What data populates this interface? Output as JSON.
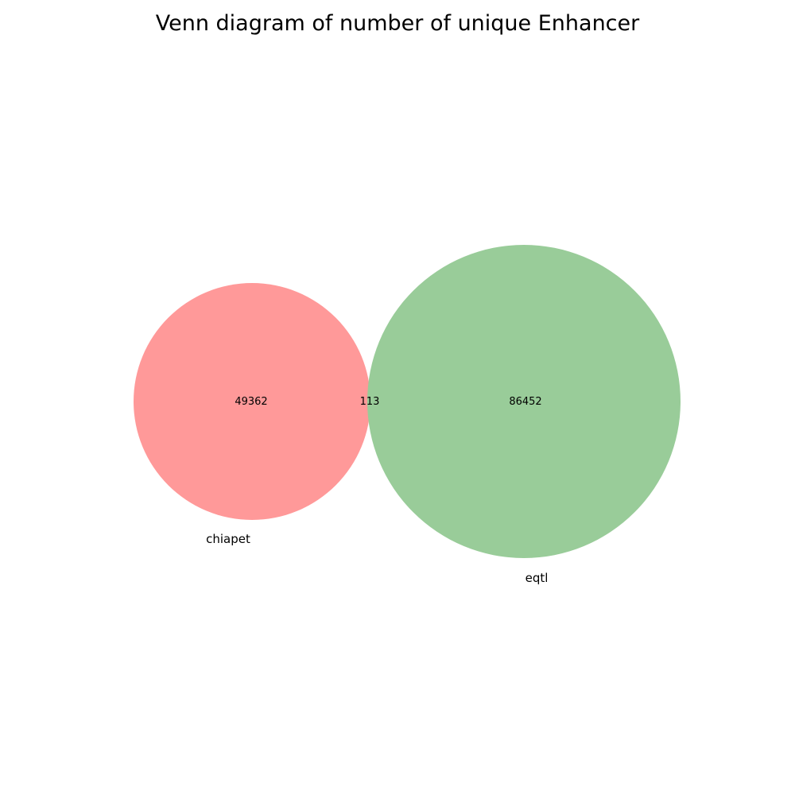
{
  "title": "Venn diagram of number of unique Enhancer",
  "sets": [
    {
      "name": "chiapet",
      "color": "#ff9999"
    },
    {
      "name": "eqtl",
      "color": "#99cc99"
    }
  ],
  "regions": {
    "chiapet_only": "49362",
    "intersection": "113",
    "eqtl_only": "86452"
  }
}
